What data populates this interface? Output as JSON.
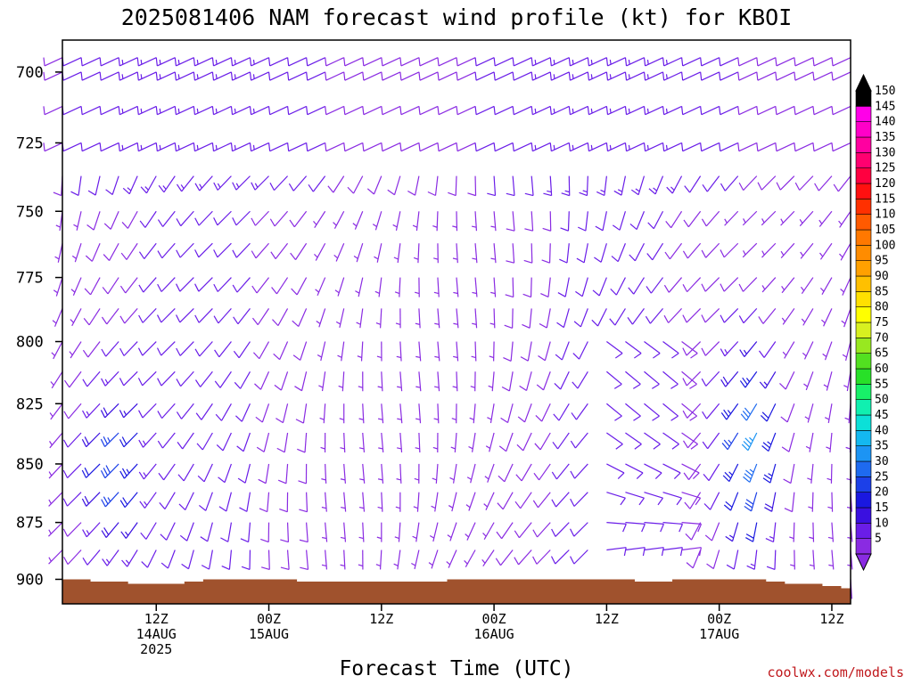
{
  "chart_data": {
    "type": "wind-profile",
    "title": "2025081406 NAM forecast wind profile (kt) for KBOI",
    "xlabel": "Forecast Time (UTC)",
    "ylabel": "",
    "credit": "coolwx.com/models",
    "y_axis": {
      "unit": "hPa",
      "range": [
        911,
        689
      ],
      "ticks": [
        "700",
        "725",
        "750",
        "775",
        "800",
        "825",
        "850",
        "875",
        "900"
      ]
    },
    "x_axis": {
      "unit": "forecast hour",
      "range": [
        -4,
        80
      ],
      "ticks": [
        {
          "hour": 6,
          "line1": "12Z",
          "line2": "14AUG",
          "line3": "2025"
        },
        {
          "hour": 18,
          "line1": "00Z",
          "line2": "15AUG",
          "line3": ""
        },
        {
          "hour": 30,
          "line1": "12Z",
          "line2": "",
          "line3": ""
        },
        {
          "hour": 42,
          "line1": "00Z",
          "line2": "16AUG",
          "line3": ""
        },
        {
          "hour": 54,
          "line1": "12Z",
          "line2": "",
          "line3": ""
        },
        {
          "hour": 66,
          "line1": "00Z",
          "line2": "17AUG",
          "line3": ""
        },
        {
          "hour": 78,
          "line1": "12Z",
          "line2": "",
          "line3": ""
        }
      ]
    },
    "hours": [
      -4,
      -2,
      0,
      2,
      4,
      6,
      8,
      10,
      12,
      14,
      16,
      18,
      20,
      22,
      24,
      26,
      28,
      30,
      32,
      34,
      36,
      38,
      40,
      42,
      44,
      46,
      48,
      50,
      52,
      54,
      56,
      58,
      60,
      62,
      64,
      66,
      68,
      70,
      72,
      74,
      76,
      78,
      80
    ],
    "levels_hpa": [
      695,
      700,
      712,
      725,
      737,
      750,
      762,
      775,
      787,
      800,
      812,
      825,
      837,
      850,
      862,
      875,
      887,
      900
    ],
    "surface_pressure_hpa": [
      900,
      900,
      901,
      901,
      902,
      902,
      902,
      901,
      900,
      900,
      900,
      900,
      900,
      901,
      901,
      901,
      901,
      901,
      901,
      901,
      901,
      900,
      900,
      900,
      900,
      900,
      900,
      900,
      900,
      900,
      900,
      901,
      901,
      900,
      900,
      900,
      900,
      900,
      901,
      902,
      902,
      903,
      904
    ],
    "colorbar": {
      "unit": "kt",
      "labels": [
        "5",
        "10",
        "15",
        "20",
        "25",
        "30",
        "35",
        "40",
        "45",
        "50",
        "55",
        "60",
        "65",
        "70",
        "75",
        "80",
        "85",
        "90",
        "95",
        "100",
        "105",
        "110",
        "115",
        "120",
        "125",
        "130",
        "135",
        "140",
        "145",
        "150"
      ],
      "colors": [
        "#8a2be2",
        "#6a1de8",
        "#3a10e0",
        "#1a18e0",
        "#1c40e8",
        "#1e6af0",
        "#1c94f4",
        "#14b8f0",
        "#0ce0d8",
        "#10f0b0",
        "#18f068",
        "#28e028",
        "#52e020",
        "#98e820",
        "#d8f020",
        "#ffff00",
        "#ffe000",
        "#ffc000",
        "#ffa000",
        "#ff8c00",
        "#ff7800",
        "#ff5a00",
        "#ff3000",
        "#ff1010",
        "#ff0040",
        "#ff0070",
        "#ff00a0",
        "#ff00c8",
        "#ff00e8",
        "#000000"
      ]
    }
  }
}
